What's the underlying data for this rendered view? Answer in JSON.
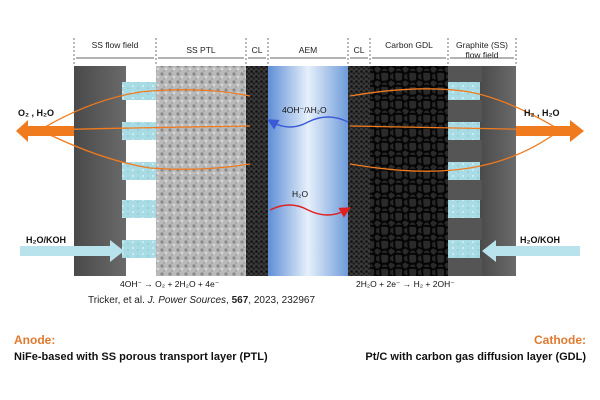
{
  "header_labels": {
    "ss_flow_field": "SS flow field",
    "ss_ptl": "SS PTL",
    "cl_left": "CL",
    "aem": "AEM",
    "cl_right": "CL",
    "carbon_gdl": "Carbon GDL",
    "graphite_flow_field": "Graphite (SS) flow field"
  },
  "flows": {
    "anode_out": "O₂ , H₂O",
    "cathode_out": "H₂ , H₂O",
    "anode_in": "H₂O/KOH",
    "cathode_in": "H₂O/KOH",
    "membrane_ion": "4OH⁻/λH₂O",
    "membrane_water": "H₂O"
  },
  "equations": {
    "anode": "4OH⁻ → O₂ + 2H₂O + 4e⁻",
    "cathode": "2H₂O + 2e⁻ → H₂ + 2OH⁻"
  },
  "citation": {
    "authors": "Tricker, et al.",
    "journal": "J. Power Sources",
    "volume": "567",
    "rest": ", 2023, 232967"
  },
  "anode": {
    "title": "Anode:",
    "description": "NiFe-based with SS porous transport layer (PTL)"
  },
  "cathode": {
    "title": "Cathode:",
    "description": "Pt/C with carbon gas diffusion layer (GDL)"
  },
  "colors": {
    "accent_orange": "#e07a2e",
    "flow_orange": "#f07a1e",
    "arrow_blue": "#3b5bd6",
    "arrow_red": "#e02020",
    "channel_cyan": "#9fd6e0",
    "plate_gray": "#5a5a5a"
  }
}
